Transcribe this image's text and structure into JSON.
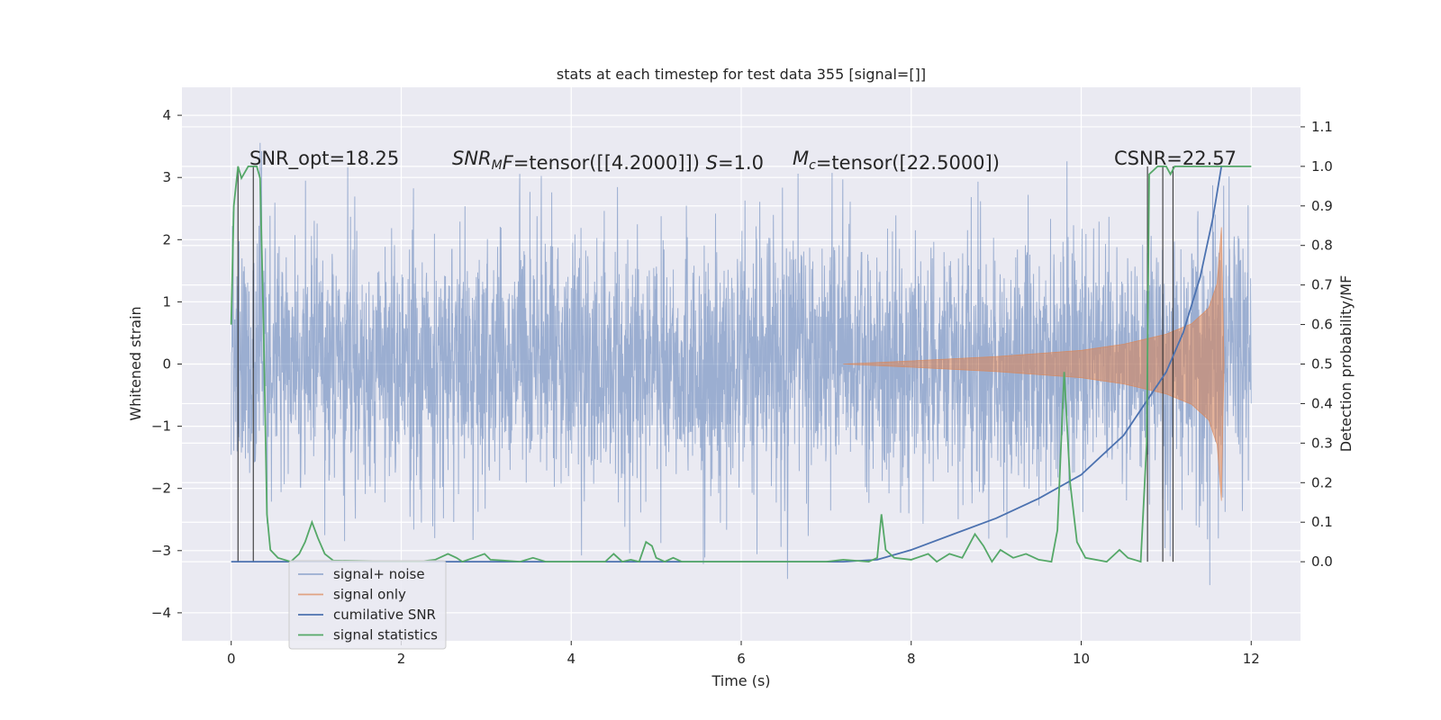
{
  "chart_data": {
    "type": "line",
    "title": "stats at each timestep for test data 355 [signal=[]]",
    "xlabel": "Time (s)",
    "ylabel_left": "Whitened strain",
    "ylabel_right": "Detection probability/MF",
    "xlim": [
      -0.58,
      12.58
    ],
    "ylim_left": [
      -4.45,
      4.45
    ],
    "ylim_right": [
      -0.2,
      1.2
    ],
    "xticks": [
      0,
      2,
      4,
      6,
      8,
      10,
      12
    ],
    "yticks_left": [
      -4,
      -3,
      -2,
      -1,
      0,
      1,
      2,
      3,
      4
    ],
    "yticks_right": [
      0.0,
      0.1,
      0.2,
      0.3,
      0.4,
      0.5,
      0.6,
      0.7,
      0.8,
      0.9,
      1.0,
      1.1
    ],
    "grid": true,
    "legend_position": "lower left",
    "annotations": [
      {
        "parts": [
          {
            "t": "SNR_opt=18.25",
            "i": false
          }
        ]
      },
      {
        "parts": [
          {
            "t": "SNR",
            "i": true
          },
          {
            "t": "M",
            "i": true,
            "sub": true
          },
          {
            "t": "F",
            "i": true
          },
          {
            "t": "=tensor([[4.2000]])  ",
            "i": false
          },
          {
            "t": "S",
            "i": true
          },
          {
            "t": "=1.0",
            "i": false
          }
        ]
      },
      {
        "parts": [
          {
            "t": "M",
            "i": true
          },
          {
            "t": "c",
            "i": true,
            "sub": true
          },
          {
            "t": "=tensor([22.5000])",
            "i": false
          }
        ]
      },
      {
        "parts": [
          {
            "t": "CSNR=22.57",
            "i": false
          }
        ]
      }
    ],
    "series": [
      {
        "name": "signal+ noise",
        "axis": "left",
        "color": "#4c72b0",
        "description_free": true,
        "t_range": [
          0,
          12
        ],
        "noise_sigma": 1.0,
        "noise_peak": 4.1
      },
      {
        "name": "signal only",
        "axis": "left",
        "color": "#dd8452",
        "envelope": [
          [
            7.2,
            0.0
          ],
          [
            8.0,
            0.05
          ],
          [
            9.0,
            0.12
          ],
          [
            10.0,
            0.22
          ],
          [
            10.5,
            0.32
          ],
          [
            11.0,
            0.48
          ],
          [
            11.3,
            0.65
          ],
          [
            11.5,
            0.9
          ],
          [
            11.6,
            1.3
          ],
          [
            11.65,
            2.2
          ],
          [
            11.68,
            0.0
          ]
        ]
      },
      {
        "name": "cumilative SNR",
        "axis": "right",
        "color": "#4c72b0",
        "points": [
          [
            0,
            0.0
          ],
          [
            7.2,
            0.0
          ],
          [
            7.6,
            0.005
          ],
          [
            8.0,
            0.03
          ],
          [
            8.5,
            0.07
          ],
          [
            9.0,
            0.11
          ],
          [
            9.5,
            0.16
          ],
          [
            10.0,
            0.22
          ],
          [
            10.5,
            0.32
          ],
          [
            11.0,
            0.48
          ],
          [
            11.2,
            0.58
          ],
          [
            11.4,
            0.72
          ],
          [
            11.55,
            0.87
          ],
          [
            11.65,
            1.0
          ]
        ]
      },
      {
        "name": "signal statistics",
        "axis": "right",
        "color": "#55a868",
        "points": [
          [
            0.0,
            0.6
          ],
          [
            0.03,
            0.9
          ],
          [
            0.08,
            1.0
          ],
          [
            0.12,
            0.97
          ],
          [
            0.2,
            1.0
          ],
          [
            0.3,
            1.0
          ],
          [
            0.34,
            0.97
          ],
          [
            0.38,
            0.6
          ],
          [
            0.42,
            0.12
          ],
          [
            0.46,
            0.03
          ],
          [
            0.55,
            0.01
          ],
          [
            0.7,
            0.0
          ],
          [
            0.8,
            0.02
          ],
          [
            0.87,
            0.05
          ],
          [
            0.95,
            0.1
          ],
          [
            1.02,
            0.06
          ],
          [
            1.1,
            0.02
          ],
          [
            1.2,
            0.003
          ],
          [
            2.2,
            0.0
          ],
          [
            2.4,
            0.005
          ],
          [
            2.55,
            0.02
          ],
          [
            2.65,
            0.01
          ],
          [
            2.72,
            0.0
          ],
          [
            2.85,
            0.01
          ],
          [
            2.98,
            0.02
          ],
          [
            3.05,
            0.005
          ],
          [
            3.2,
            0.003
          ],
          [
            3.4,
            0.0
          ],
          [
            3.55,
            0.01
          ],
          [
            3.7,
            0.0
          ],
          [
            4.4,
            0.0
          ],
          [
            4.5,
            0.02
          ],
          [
            4.6,
            0.0
          ],
          [
            4.7,
            0.005
          ],
          [
            4.8,
            0.0
          ],
          [
            4.88,
            0.05
          ],
          [
            4.95,
            0.04
          ],
          [
            5.0,
            0.01
          ],
          [
            5.1,
            0.0
          ],
          [
            5.2,
            0.01
          ],
          [
            5.3,
            0.0
          ],
          [
            7.0,
            0.0
          ],
          [
            7.2,
            0.005
          ],
          [
            7.5,
            0.0
          ],
          [
            7.6,
            0.01
          ],
          [
            7.65,
            0.12
          ],
          [
            7.7,
            0.03
          ],
          [
            7.8,
            0.01
          ],
          [
            8.0,
            0.005
          ],
          [
            8.2,
            0.02
          ],
          [
            8.3,
            0.0
          ],
          [
            8.45,
            0.02
          ],
          [
            8.6,
            0.01
          ],
          [
            8.75,
            0.07
          ],
          [
            8.85,
            0.04
          ],
          [
            8.95,
            0.0
          ],
          [
            9.05,
            0.03
          ],
          [
            9.2,
            0.01
          ],
          [
            9.35,
            0.02
          ],
          [
            9.5,
            0.005
          ],
          [
            9.65,
            0.0
          ],
          [
            9.72,
            0.08
          ],
          [
            9.8,
            0.48
          ],
          [
            9.87,
            0.2
          ],
          [
            9.95,
            0.05
          ],
          [
            10.05,
            0.01
          ],
          [
            10.3,
            0.0
          ],
          [
            10.45,
            0.03
          ],
          [
            10.55,
            0.01
          ],
          [
            10.7,
            0.0
          ],
          [
            10.77,
            0.3
          ],
          [
            10.8,
            0.98
          ],
          [
            10.9,
            1.0
          ],
          [
            11.0,
            1.0
          ],
          [
            11.05,
            0.98
          ],
          [
            11.1,
            1.0
          ],
          [
            11.2,
            1.0
          ],
          [
            11.5,
            1.0
          ],
          [
            12.0,
            1.0
          ]
        ]
      }
    ],
    "vlines": [
      0.08,
      0.26,
      10.78,
      10.96,
      11.08
    ],
    "vline_color": "#262626"
  }
}
